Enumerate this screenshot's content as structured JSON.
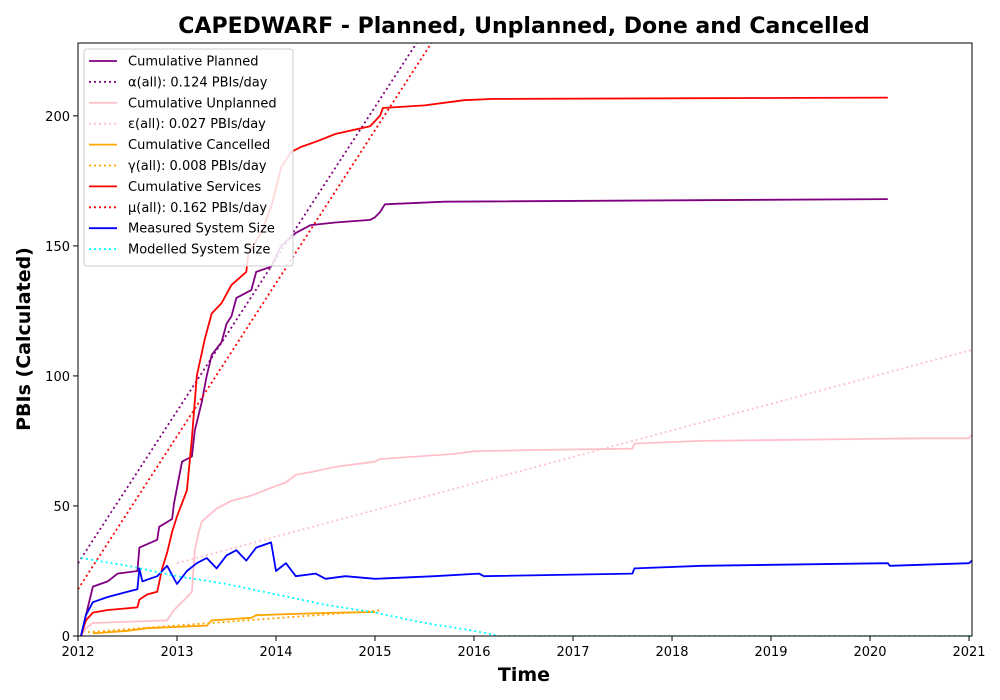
{
  "chart_data": {
    "type": "line",
    "title": "CAPEDWARF - Planned, Unplanned, Done  and Cancelled",
    "xlabel": "Time",
    "ylabel": "PBIs (Calculated)",
    "xlim": [
      2012.0,
      2021.03
    ],
    "ylim": [
      0,
      228
    ],
    "x_ticks": [
      "2012",
      "2013",
      "2014",
      "2015",
      "2016",
      "2017",
      "2018",
      "2019",
      "2020",
      "2021"
    ],
    "y_ticks": [
      "0",
      "50",
      "100",
      "150",
      "200"
    ],
    "legend_position": "top-left",
    "series": [
      {
        "name": "Cumulative Planned",
        "color": "#800080",
        "style": "solid",
        "points": [
          [
            2012.03,
            0
          ],
          [
            2012.08,
            8
          ],
          [
            2012.15,
            19
          ],
          [
            2012.3,
            21
          ],
          [
            2012.4,
            24
          ],
          [
            2012.6,
            25
          ],
          [
            2012.62,
            34
          ],
          [
            2012.8,
            37
          ],
          [
            2012.82,
            42
          ],
          [
            2012.95,
            45
          ],
          [
            2012.97,
            51
          ],
          [
            2013.0,
            57
          ],
          [
            2013.05,
            67
          ],
          [
            2013.15,
            69
          ],
          [
            2013.18,
            79
          ],
          [
            2013.25,
            90
          ],
          [
            2013.3,
            100
          ],
          [
            2013.35,
            108
          ],
          [
            2013.45,
            113
          ],
          [
            2013.5,
            120
          ],
          [
            2013.55,
            123
          ],
          [
            2013.6,
            130
          ],
          [
            2013.75,
            133
          ],
          [
            2013.8,
            140
          ],
          [
            2013.95,
            142
          ],
          [
            2014.05,
            150
          ],
          [
            2014.2,
            155
          ],
          [
            2014.35,
            158
          ],
          [
            2014.6,
            159
          ],
          [
            2014.95,
            160
          ],
          [
            2015.0,
            161
          ],
          [
            2015.05,
            163
          ],
          [
            2015.1,
            166
          ],
          [
            2015.7,
            167
          ],
          [
            2020.18,
            168
          ]
        ]
      },
      {
        "name": "α(all): 0.124 PBIs/day",
        "color": "#800080",
        "style": "dotted",
        "points": [
          [
            2012.0,
            28
          ],
          [
            2015.42,
            228
          ]
        ]
      },
      {
        "name": "Cumulative Unplanned",
        "color": "#ffc0cb",
        "style": "solid",
        "points": [
          [
            2012.03,
            0
          ],
          [
            2012.08,
            3
          ],
          [
            2012.15,
            5
          ],
          [
            2012.9,
            6
          ],
          [
            2012.97,
            10
          ],
          [
            2013.05,
            13
          ],
          [
            2013.15,
            17
          ],
          [
            2013.18,
            33
          ],
          [
            2013.22,
            40
          ],
          [
            2013.25,
            44
          ],
          [
            2013.4,
            49
          ],
          [
            2013.55,
            52
          ],
          [
            2013.75,
            54
          ],
          [
            2013.95,
            57
          ],
          [
            2014.1,
            59
          ],
          [
            2014.2,
            62
          ],
          [
            2014.35,
            63
          ],
          [
            2014.6,
            65
          ],
          [
            2015.0,
            67
          ],
          [
            2015.05,
            68
          ],
          [
            2015.8,
            70
          ],
          [
            2016.0,
            71
          ],
          [
            2016.6,
            71.5
          ],
          [
            2017.6,
            72
          ],
          [
            2017.62,
            74
          ],
          [
            2018.3,
            75
          ],
          [
            2020.5,
            76
          ],
          [
            2021.0,
            76
          ],
          [
            2021.03,
            77.5
          ]
        ]
      },
      {
        "name": "ε(all): 0.027 PBIs/day",
        "color": "#ffc0cb",
        "style": "dotted",
        "points": [
          [
            2013.0,
            28
          ],
          [
            2021.03,
            110
          ]
        ]
      },
      {
        "name": "Cumulative Cancelled",
        "color": "#ffa500",
        "style": "solid",
        "points": [
          [
            2012.15,
            1
          ],
          [
            2012.5,
            2
          ],
          [
            2012.7,
            3
          ],
          [
            2013.0,
            3.5
          ],
          [
            2013.3,
            4
          ],
          [
            2013.35,
            6
          ],
          [
            2013.75,
            7
          ],
          [
            2013.8,
            8
          ],
          [
            2014.2,
            8.5
          ],
          [
            2014.6,
            9
          ],
          [
            2015.0,
            9.2
          ]
        ]
      },
      {
        "name": "γ(all): 0.008 PBIs/day",
        "color": "#ffa500",
        "style": "dotted",
        "points": [
          [
            2012.1,
            1.5
          ],
          [
            2015.05,
            9.8
          ]
        ]
      },
      {
        "name": "Cumulative Services",
        "color": "#ff0000",
        "style": "solid",
        "points": [
          [
            2012.03,
            0
          ],
          [
            2012.08,
            6
          ],
          [
            2012.15,
            9
          ],
          [
            2012.3,
            10
          ],
          [
            2012.6,
            11
          ],
          [
            2012.62,
            14
          ],
          [
            2012.7,
            16
          ],
          [
            2012.8,
            17
          ],
          [
            2012.85,
            26
          ],
          [
            2012.9,
            32
          ],
          [
            2012.95,
            40
          ],
          [
            2013.0,
            46
          ],
          [
            2013.1,
            56
          ],
          [
            2013.15,
            76
          ],
          [
            2013.2,
            100
          ],
          [
            2013.28,
            114
          ],
          [
            2013.35,
            124
          ],
          [
            2013.45,
            128
          ],
          [
            2013.55,
            135
          ],
          [
            2013.7,
            140
          ],
          [
            2013.72,
            147
          ],
          [
            2013.85,
            155
          ],
          [
            2013.95,
            165
          ],
          [
            2014.0,
            172
          ],
          [
            2014.05,
            180
          ],
          [
            2014.15,
            186
          ],
          [
            2014.25,
            188
          ],
          [
            2014.4,
            190
          ],
          [
            2014.6,
            193
          ],
          [
            2014.95,
            196
          ],
          [
            2015.05,
            200
          ],
          [
            2015.08,
            203
          ],
          [
            2015.5,
            204
          ],
          [
            2015.9,
            206
          ],
          [
            2016.2,
            206.5
          ],
          [
            2020.18,
            207
          ]
        ]
      },
      {
        "name": "μ(all): 0.162 PBIs/day",
        "color": "#ff0000",
        "style": "dotted",
        "points": [
          [
            2012.0,
            18
          ],
          [
            2015.57,
            228
          ]
        ]
      },
      {
        "name": "Measured System Size",
        "color": "#0000ff",
        "style": "solid",
        "points": [
          [
            2012.03,
            0
          ],
          [
            2012.08,
            8
          ],
          [
            2012.15,
            13
          ],
          [
            2012.3,
            15
          ],
          [
            2012.5,
            17
          ],
          [
            2012.6,
            18
          ],
          [
            2012.62,
            26
          ],
          [
            2012.65,
            21
          ],
          [
            2012.8,
            23
          ],
          [
            2012.9,
            27
          ],
          [
            2013.0,
            20
          ],
          [
            2013.1,
            25
          ],
          [
            2013.2,
            28
          ],
          [
            2013.3,
            30
          ],
          [
            2013.4,
            26
          ],
          [
            2013.5,
            31
          ],
          [
            2013.6,
            33
          ],
          [
            2013.7,
            29
          ],
          [
            2013.8,
            34
          ],
          [
            2013.95,
            36
          ],
          [
            2014.0,
            25
          ],
          [
            2014.1,
            28
          ],
          [
            2014.2,
            23
          ],
          [
            2014.4,
            24
          ],
          [
            2014.5,
            22
          ],
          [
            2014.7,
            23
          ],
          [
            2015.0,
            22
          ],
          [
            2015.6,
            23
          ],
          [
            2016.05,
            24
          ],
          [
            2016.1,
            23
          ],
          [
            2017.6,
            24
          ],
          [
            2017.62,
            26
          ],
          [
            2018.3,
            27
          ],
          [
            2020.18,
            28
          ],
          [
            2020.2,
            27
          ],
          [
            2021.0,
            28
          ],
          [
            2021.03,
            29
          ]
        ]
      },
      {
        "name": "Modelled System Size",
        "color": "#00ffff",
        "style": "dotted",
        "points": [
          [
            2012.03,
            30
          ],
          [
            2012.5,
            27
          ],
          [
            2013.0,
            23
          ],
          [
            2013.5,
            20
          ],
          [
            2014.0,
            16
          ],
          [
            2014.5,
            12
          ],
          [
            2015.0,
            9
          ],
          [
            2015.5,
            5
          ],
          [
            2016.0,
            2
          ],
          [
            2016.25,
            0
          ],
          [
            2021.03,
            0
          ]
        ]
      }
    ]
  }
}
